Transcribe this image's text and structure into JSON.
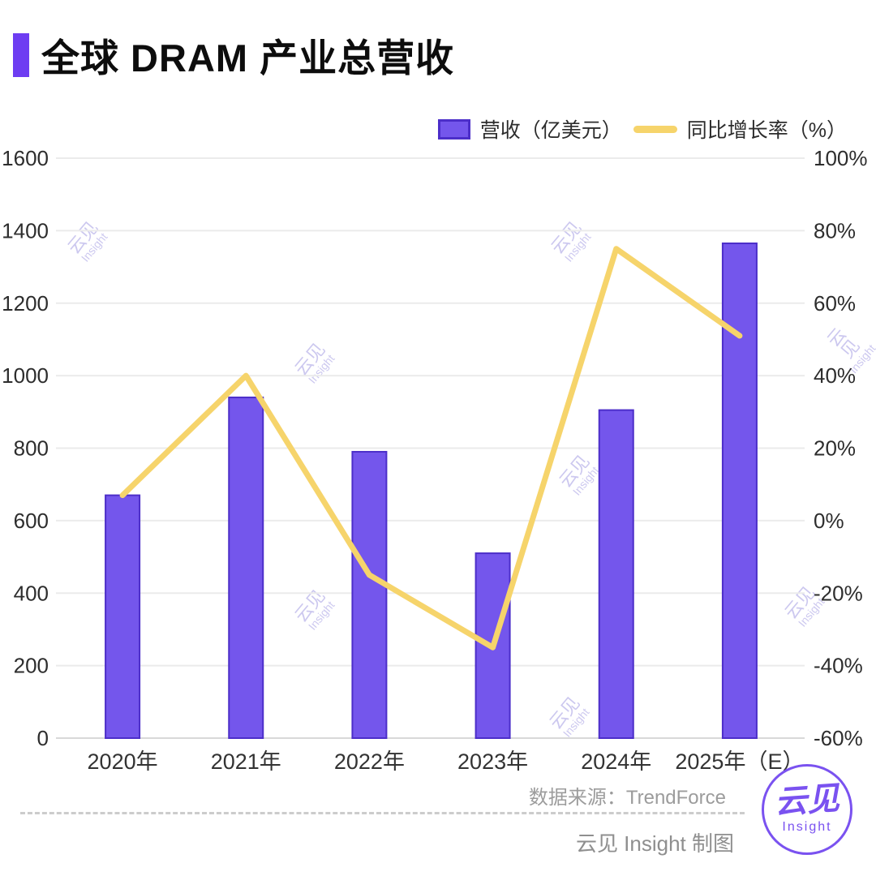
{
  "header": {
    "title": "全球 DRAM 产业总营收"
  },
  "legend": {
    "bar_label": "营收（亿美元）",
    "line_label": "同比增长率（%）"
  },
  "chart_data": {
    "type": "bar",
    "subtype": "bar-line-combo",
    "title": "全球 DRAM 产业总营收",
    "categories": [
      "2020年",
      "2021年",
      "2022年",
      "2023年",
      "2024年",
      "2025年（E）"
    ],
    "series": [
      {
        "name": "营收（亿美元）",
        "type": "bar",
        "axis": "left",
        "values": [
          670,
          940,
          790,
          510,
          905,
          1365
        ],
        "color": "#7456EC"
      },
      {
        "name": "同比增长率（%）",
        "type": "line",
        "axis": "right",
        "values": [
          7,
          40,
          -15,
          -35,
          75,
          51
        ],
        "color": "#F6D46B"
      }
    ],
    "left_axis": {
      "min": 0,
      "max": 1600,
      "step": 200,
      "ticks": [
        "1600",
        "1400",
        "1200",
        "1000",
        "800",
        "600",
        "400",
        "200",
        "0"
      ]
    },
    "right_axis": {
      "min": -60,
      "max": 100,
      "step": 20,
      "ticks": [
        "100%",
        "80%",
        "60%",
        "40%",
        "20%",
        "0%",
        "-20%",
        "-40%",
        "-60%"
      ]
    },
    "grid": true,
    "legend_position": "top-right"
  },
  "footer": {
    "source": "数据来源：TrendForce",
    "credit": "云见 Insight 制图"
  },
  "watermark": {
    "line1": "云见",
    "line2": "Insight"
  },
  "logo": {
    "line1": "云见",
    "line2": "Insight"
  },
  "colors": {
    "bar": "#7456EC",
    "bar_border": "#4C2EC9",
    "line": "#F6D46B",
    "accent": "#6E3DF2",
    "grid": "#ebebeb",
    "baseline": "#d8d8d8",
    "axis_text": "#2d2d2d",
    "x_text": "#333333"
  }
}
